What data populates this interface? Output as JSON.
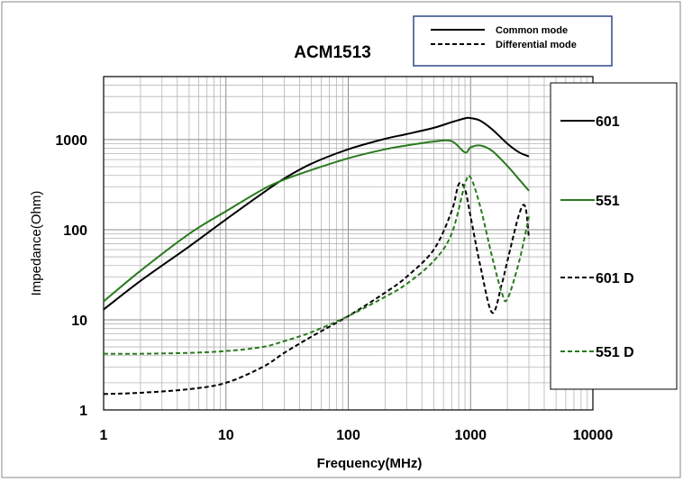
{
  "chart_data": {
    "type": "line",
    "title": "ACM1513",
    "xlabel": "Frequency(MHz)",
    "ylabel": "Impedance(Ohm)",
    "x_scale": "log",
    "y_scale": "log",
    "xlim": [
      1,
      10000
    ],
    "ylim": [
      1,
      5000
    ],
    "x_ticks": [
      1,
      10,
      100,
      1000,
      10000
    ],
    "x_tick_labels": [
      "1",
      "10",
      "100",
      "1000",
      "10000"
    ],
    "y_ticks": [
      1,
      10,
      100,
      1000
    ],
    "y_tick_labels": [
      "1",
      "10",
      "100",
      "1000"
    ],
    "grid": true,
    "mode_legend": {
      "placement": "top-right",
      "entries": [
        {
          "label": "Common mode",
          "style": "solid"
        },
        {
          "label": "Differential mode",
          "style": "dashed"
        }
      ]
    },
    "series_legend": {
      "placement": "right"
    },
    "series": [
      {
        "name": "601",
        "color": "#000000",
        "style": "solid",
        "x": [
          1,
          2,
          5,
          10,
          20,
          30,
          50,
          100,
          200,
          300,
          500,
          700,
          900,
          1000,
          1200,
          1500,
          2000,
          2500,
          3000
        ],
        "y": [
          13,
          27,
          65,
          130,
          255,
          370,
          540,
          780,
          1020,
          1150,
          1350,
          1560,
          1720,
          1730,
          1620,
          1300,
          900,
          720,
          650
        ]
      },
      {
        "name": "551",
        "color": "#2a7a1e",
        "style": "solid",
        "x": [
          1,
          2,
          5,
          10,
          20,
          30,
          50,
          100,
          200,
          300,
          500,
          700,
          900,
          1000,
          1200,
          1500,
          2000,
          2500,
          3000
        ],
        "y": [
          16,
          35,
          90,
          160,
          280,
          360,
          460,
          620,
          780,
          860,
          950,
          960,
          720,
          820,
          860,
          750,
          510,
          360,
          270
        ]
      },
      {
        "name": "601 D",
        "color": "#000000",
        "style": "dashed",
        "x": [
          1,
          2,
          5,
          10,
          20,
          30,
          50,
          100,
          200,
          300,
          500,
          700,
          800,
          900,
          1000,
          1200,
          1500,
          1800,
          2000,
          2500,
          2800,
          3000
        ],
        "y": [
          1.5,
          1.55,
          1.7,
          2.0,
          3.0,
          4.3,
          6.5,
          11,
          20,
          30,
          60,
          160,
          320,
          280,
          140,
          40,
          12,
          25,
          45,
          150,
          180,
          80
        ]
      },
      {
        "name": "551 D",
        "color": "#2a7a1e",
        "style": "dashed",
        "x": [
          1,
          2,
          5,
          10,
          20,
          30,
          50,
          100,
          200,
          300,
          500,
          700,
          900,
          1000,
          1200,
          1500,
          1800,
          2000,
          2500,
          3000
        ],
        "y": [
          4.2,
          4.2,
          4.3,
          4.5,
          5.0,
          5.8,
          7.3,
          11,
          18,
          25,
          45,
          90,
          320,
          380,
          180,
          50,
          20,
          17,
          45,
          140
        ]
      }
    ]
  }
}
